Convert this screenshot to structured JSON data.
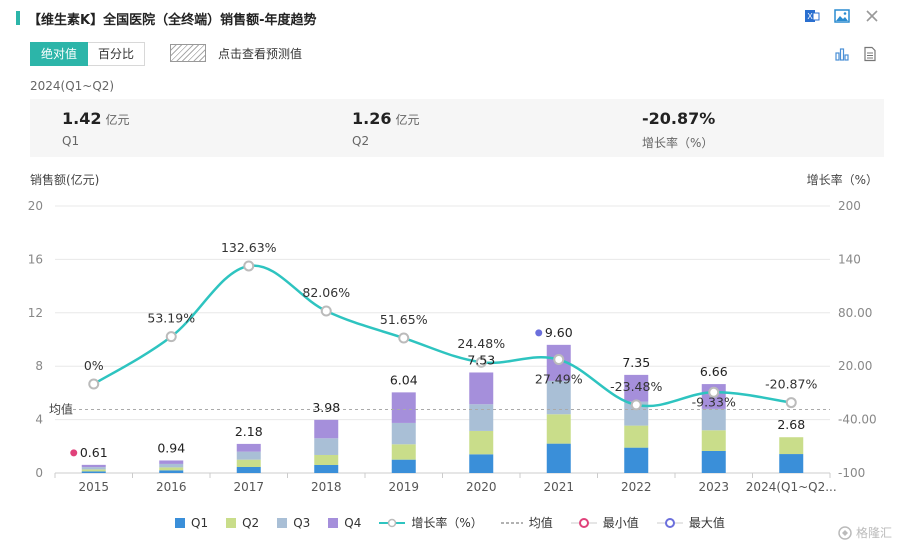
{
  "header": {
    "title": "【维生素K】全国医院（全终端）销售额-年度趋势",
    "icons": [
      "excel-export-icon",
      "image-export-icon",
      "close-icon"
    ]
  },
  "toggle": {
    "absolute_label": "绝对值",
    "percent_label": "百分比",
    "active": "absolute"
  },
  "forecast_label": "点击查看预测值",
  "period_label": "2024(Q1~Q2)",
  "summary": [
    {
      "value": "1.42",
      "unit": "亿元",
      "label": "Q1"
    },
    {
      "value": "1.26",
      "unit": "亿元",
      "label": "Q2"
    },
    {
      "value": "-20.87%",
      "unit": "",
      "label": "增长率（%）"
    }
  ],
  "colors": {
    "accent": "#2cb5a9",
    "q1": "#3a8fd9",
    "q2": "#c9dd8a",
    "q3": "#a9bfd6",
    "q4": "#a58fdb",
    "growth": "#2ec4c0",
    "mean": "#aaaaaa",
    "min": "#e0417a",
    "max": "#6b6fdc"
  },
  "chart_data": {
    "type": "bar",
    "stacked": true,
    "ylabel": "销售额(亿元)",
    "y2label": "增长率（%）",
    "ylim": [
      0,
      20
    ],
    "y_ticks": [
      0,
      4,
      8,
      12,
      16,
      20
    ],
    "y2lim": [
      -100,
      200
    ],
    "y2_ticks": [
      "-100",
      "-40.00",
      "20.00",
      "80.00",
      "140",
      "200"
    ],
    "categories": [
      "2015",
      "2016",
      "2017",
      "2018",
      "2019",
      "2020",
      "2021",
      "2022",
      "2023",
      "2024(Q1~Q2..."
    ],
    "series": [
      {
        "name": "Q1",
        "values": [
          0.12,
          0.2,
          0.45,
          0.6,
          1.0,
          1.4,
          2.2,
          1.9,
          1.65,
          1.42
        ]
      },
      {
        "name": "Q2",
        "values": [
          0.15,
          0.22,
          0.55,
          0.75,
          1.15,
          1.75,
          2.2,
          1.65,
          1.55,
          1.26
        ]
      },
      {
        "name": "Q3",
        "values": [
          0.17,
          0.26,
          0.6,
          1.25,
          1.6,
          2.0,
          2.5,
          1.8,
          1.6,
          0
        ]
      },
      {
        "name": "Q4",
        "values": [
          0.17,
          0.26,
          0.58,
          1.38,
          2.29,
          2.38,
          2.7,
          2.0,
          1.86,
          0
        ]
      }
    ],
    "totals": [
      0.61,
      0.94,
      2.18,
      3.98,
      6.04,
      7.53,
      9.6,
      7.35,
      6.66,
      2.68
    ],
    "total_labels": [
      "0.61",
      "0.94",
      "2.18",
      "3.98",
      "6.04",
      "7.53",
      "9.60",
      "7.35",
      "6.66",
      "2.68"
    ],
    "growth": {
      "name": "增长率（%）",
      "values": [
        0,
        53.19,
        132.63,
        82.06,
        51.65,
        24.48,
        27.49,
        -23.48,
        -9.33,
        -20.87
      ],
      "labels": [
        "0%",
        "53.19%",
        "132.63%",
        "82.06%",
        "51.65%",
        "24.48%",
        "27.49%",
        "-23.48%",
        "-9.33%",
        "-20.87%"
      ]
    },
    "mean": {
      "name": "均值",
      "label": "均值",
      "value": 4.76
    },
    "min_marker": {
      "name": "最小值",
      "index": 0
    },
    "max_marker": {
      "name": "最大值",
      "index": 6
    },
    "grid": true,
    "legend_position": "bottom"
  },
  "legend": [
    {
      "key": "Q1",
      "label": "Q1"
    },
    {
      "key": "Q2",
      "label": "Q2"
    },
    {
      "key": "Q3",
      "label": "Q3"
    },
    {
      "key": "Q4",
      "label": "Q4"
    },
    {
      "key": "growth",
      "label": "增长率（%）"
    },
    {
      "key": "mean",
      "label": "均值"
    },
    {
      "key": "min",
      "label": "最小值"
    },
    {
      "key": "max",
      "label": "最大值"
    }
  ],
  "watermark": "格隆汇"
}
